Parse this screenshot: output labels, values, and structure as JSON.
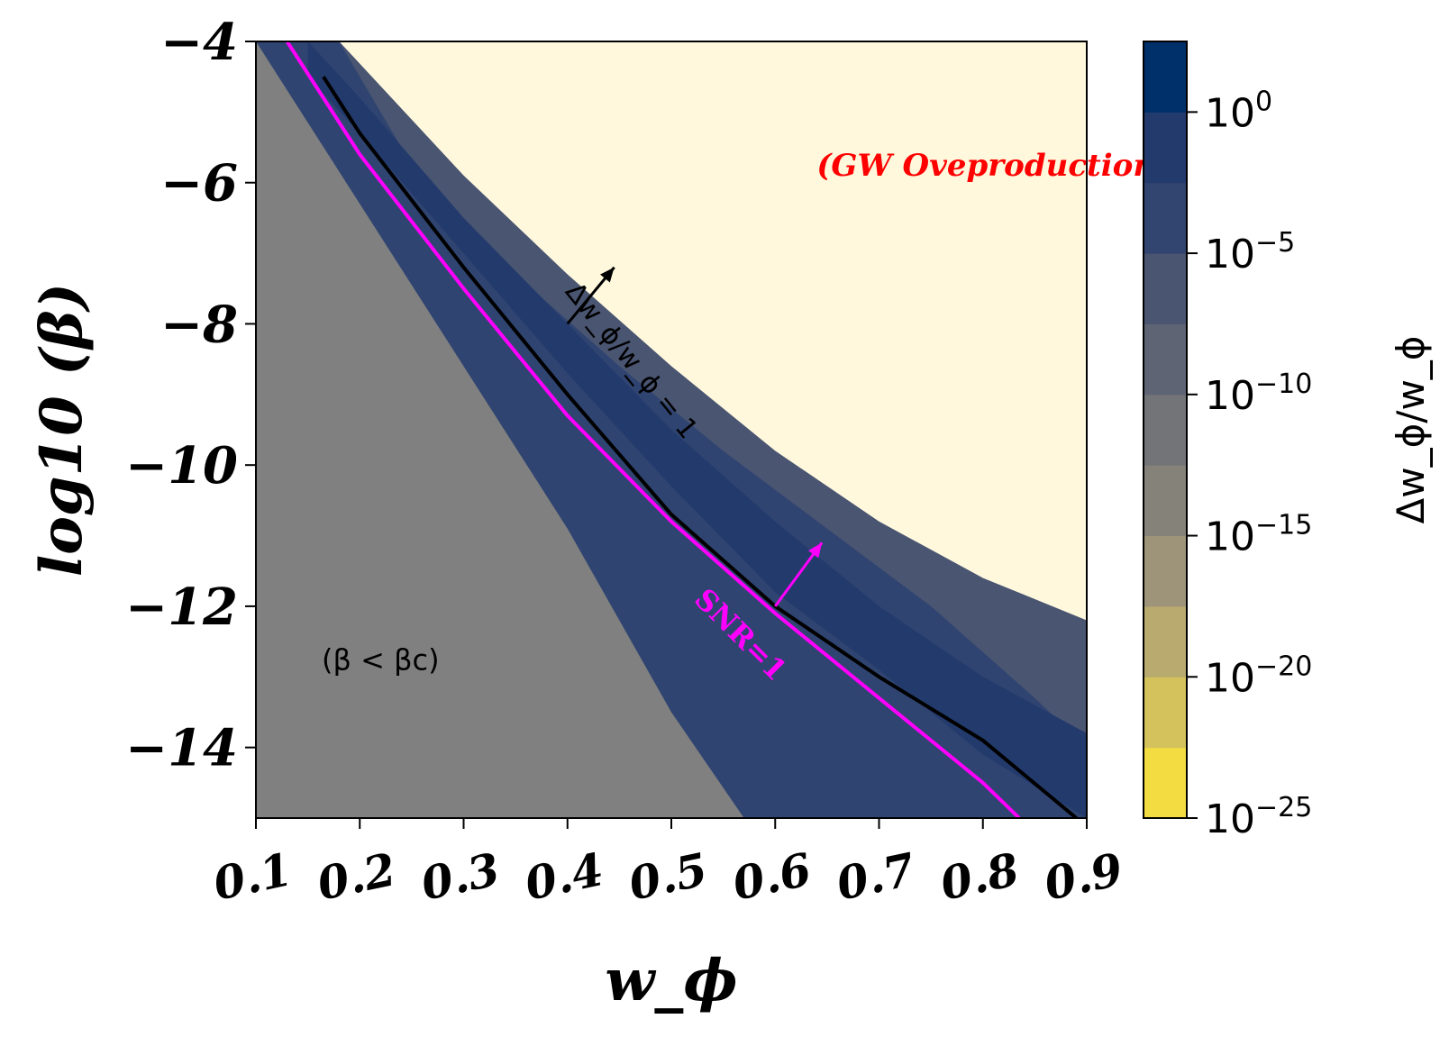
{
  "chart_data": {
    "type": "heatmap",
    "title": "",
    "xlabel": "w_ϕ",
    "ylabel": "log10 (β)",
    "xlim": [
      0.1,
      0.9
    ],
    "ylim": [
      -15,
      -4
    ],
    "x_ticks": [
      "0.1",
      "0.2",
      "0.3",
      "0.4",
      "0.5",
      "0.6",
      "0.7",
      "0.8",
      "0.9"
    ],
    "y_ticks": [
      "−4",
      "−6",
      "−8",
      "−10",
      "−12",
      "−14"
    ],
    "colorbar": {
      "label": "Δw_ϕ/w_ϕ",
      "scale": "log",
      "tick_labels": [
        "10^0",
        "10^−5",
        "10^−10",
        "10^−15",
        "10^−20",
        "10^−25"
      ],
      "levels": [
        {
          "exp_low": -25,
          "exp_high": -22.5,
          "color": "#f2dc42"
        },
        {
          "exp_low": -22.5,
          "exp_high": -20,
          "color": "#d4c25c"
        },
        {
          "exp_low": -20,
          "exp_high": -17.5,
          "color": "#b9aa6f"
        },
        {
          "exp_low": -17.5,
          "exp_high": -15,
          "color": "#9d9479"
        },
        {
          "exp_low": -15,
          "exp_high": -12.5,
          "color": "#85827a"
        },
        {
          "exp_low": -12.5,
          "exp_high": -10,
          "color": "#737477"
        },
        {
          "exp_low": -10,
          "exp_high": -7.5,
          "color": "#5f6474"
        },
        {
          "exp_low": -7.5,
          "exp_high": -5,
          "color": "#4a5572"
        },
        {
          "exp_low": -5,
          "exp_high": -2.5,
          "color": "#324470"
        },
        {
          "exp_low": -2.5,
          "exp_high": 0,
          "color": "#233a6c"
        },
        {
          "exp_low": 0,
          "exp_high": 1,
          "color": "#00306a"
        }
      ]
    },
    "regions": [
      {
        "name": "(GW Oveproduction)",
        "color": "#fff8dc",
        "boundary_x": [
          0.18,
          0.3,
          0.4,
          0.5,
          0.6,
          0.7,
          0.8,
          0.9
        ],
        "boundary_y": [
          -4.0,
          -5.9,
          -7.3,
          -8.6,
          -9.8,
          -10.8,
          -11.6,
          -12.2
        ]
      },
      {
        "name": "(β < βc)",
        "color": "#808080",
        "boundary_x": [
          0.1,
          0.2,
          0.3,
          0.4,
          0.5,
          0.57
        ],
        "boundary_y": [
          -4.0,
          -6.3,
          -8.6,
          -10.9,
          -13.5,
          -15.0
        ]
      }
    ],
    "bands": [
      {
        "level_exponent": -7.5,
        "upper_x": [
          0.18,
          0.3,
          0.4,
          0.5,
          0.6,
          0.7,
          0.8,
          0.9
        ],
        "upper_y": [
          -4.0,
          -5.9,
          -7.3,
          -8.6,
          -9.8,
          -10.8,
          -11.6,
          -12.2
        ],
        "lower_x": [
          0.26,
          0.35,
          0.45,
          0.55,
          0.65,
          0.75,
          0.85,
          0.9
        ],
        "lower_y": [
          -6.0,
          -7.3,
          -8.6,
          -9.8,
          -10.9,
          -12.0,
          -13.3,
          -14.0
        ]
      },
      {
        "level_exponent": -2.5,
        "upper_x": [
          0.15,
          0.2,
          0.3,
          0.4,
          0.5,
          0.6,
          0.7,
          0.8,
          0.9
        ],
        "upper_y": [
          -4.0,
          -4.8,
          -6.5,
          -8.0,
          -9.5,
          -10.8,
          -12.0,
          -13.0,
          -13.8
        ],
        "lower_x": [
          0.15,
          0.2,
          0.3,
          0.4,
          0.5,
          0.6,
          0.7,
          0.8,
          0.9
        ],
        "lower_y": [
          -4.5,
          -5.3,
          -7.0,
          -8.7,
          -10.3,
          -11.8,
          -12.9,
          -14.1,
          -15.0
        ]
      }
    ],
    "series": [
      {
        "name": "Δw_ϕ/w_ϕ = 1",
        "color": "#000000",
        "x": [
          0.165,
          0.2,
          0.3,
          0.4,
          0.5,
          0.6,
          0.7,
          0.8,
          0.89
        ],
        "y": [
          -4.5,
          -5.3,
          -7.2,
          -9.0,
          -10.7,
          -12.0,
          -13.0,
          -13.9,
          -15.0
        ]
      },
      {
        "name": "SNR=1",
        "color": "#ff00ff",
        "x": [
          0.13,
          0.2,
          0.3,
          0.4,
          0.5,
          0.6,
          0.7,
          0.8,
          0.835
        ],
        "y": [
          -4.0,
          -5.6,
          -7.5,
          -9.3,
          -10.8,
          -12.1,
          -13.3,
          -14.5,
          -15.0
        ]
      }
    ],
    "annotations": [
      {
        "text": "(GW Oveproduction)",
        "color": "#ff0000",
        "x": 0.64,
        "y": -5.9
      },
      {
        "text": "(β < βc)",
        "color": "#000000",
        "x": 0.22,
        "y": -12.9
      },
      {
        "text": "Δw_ϕ/w_ϕ = 1",
        "color": "#000000",
        "x": 0.455,
        "y": -8.6
      },
      {
        "text": "SNR=1",
        "color": "#ff00ff",
        "x": 0.56,
        "y": -12.5
      }
    ],
    "arrows": [
      {
        "color": "#000000",
        "from": [
          0.4,
          -8.0
        ],
        "to": [
          0.445,
          -7.2
        ]
      },
      {
        "color": "#ff00ff",
        "from": [
          0.6,
          -12.0
        ],
        "to": [
          0.645,
          -11.1
        ]
      }
    ],
    "grid": false
  }
}
